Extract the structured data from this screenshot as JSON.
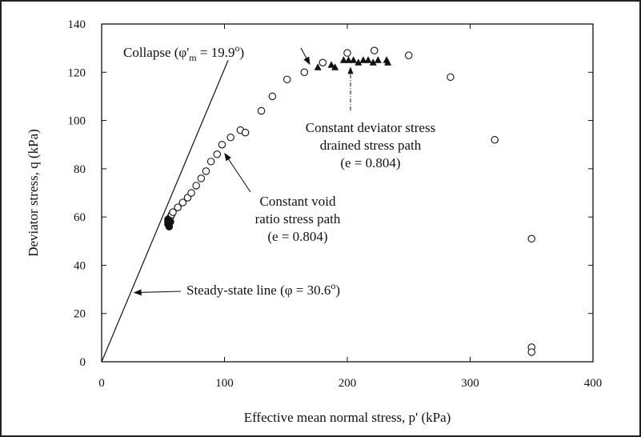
{
  "chart_data": {
    "type": "scatter",
    "title": "",
    "xlabel": "Effective mean normal stress, p' (kPa)",
    "ylabel": "Deviator stress, q (kPa)",
    "xlim": [
      0,
      400
    ],
    "ylim": [
      0,
      140
    ],
    "x_ticks": [
      0,
      100,
      200,
      300,
      400
    ],
    "y_ticks": [
      0,
      20,
      40,
      60,
      80,
      100,
      120,
      140
    ],
    "grid": false,
    "legend": "none",
    "series": [
      {
        "marker": "open-circle",
        "points": [
          [
            54,
            58
          ],
          [
            55,
            59
          ],
          [
            56,
            60
          ],
          [
            57,
            61
          ],
          [
            58,
            62
          ],
          [
            62,
            64
          ],
          [
            66,
            66
          ],
          [
            70,
            68
          ],
          [
            73,
            70
          ],
          [
            77,
            73
          ],
          [
            81,
            76
          ],
          [
            85,
            79
          ],
          [
            89,
            83
          ],
          [
            94,
            86
          ],
          [
            98,
            90
          ],
          [
            105,
            93
          ],
          [
            113,
            96
          ],
          [
            117,
            95
          ],
          [
            130,
            104
          ],
          [
            139,
            110
          ],
          [
            151,
            117
          ],
          [
            165,
            120
          ],
          [
            180,
            124
          ],
          [
            200,
            128
          ],
          [
            222,
            129
          ],
          [
            250,
            127
          ],
          [
            284,
            118
          ],
          [
            320,
            92
          ],
          [
            350,
            51
          ],
          [
            350,
            6
          ],
          [
            350,
            4
          ]
        ]
      },
      {
        "marker": "filled-triangle",
        "points": [
          [
            176,
            122
          ],
          [
            187,
            123
          ],
          [
            190,
            122
          ],
          [
            197,
            125
          ],
          [
            201,
            125
          ],
          [
            205,
            125
          ],
          [
            209,
            124
          ],
          [
            213,
            125
          ],
          [
            217,
            125
          ],
          [
            221,
            124
          ],
          [
            225,
            125
          ],
          [
            232,
            125
          ],
          [
            233,
            124
          ]
        ]
      },
      {
        "marker": "filled-circle",
        "points": [
          [
            54,
            57
          ],
          [
            55,
            56
          ],
          [
            56,
            58
          ],
          [
            54,
            59
          ]
        ]
      }
    ],
    "lines": [
      {
        "label": "Steady-state line",
        "from": [
          0,
          0
        ],
        "to": [
          103,
          125
        ]
      }
    ],
    "annotations": [
      {
        "text": "Collapse (φ'",
        "sub": "m",
        "text2": " = 19.9",
        "sup": "o",
        "text3": ")",
        "arrow_to": [
          172,
          122
        ]
      },
      {
        "text_lines": [
          "Constant deviator stress",
          "drained stress path",
          "(e = 0.804)"
        ],
        "arrow_to": [
          198,
          124
        ]
      },
      {
        "text_lines": [
          "Constant void",
          "ratio stress path",
          "(e = 0.804)"
        ],
        "arrow_to": [
          95,
          87
        ]
      },
      {
        "text": "Steady-state line (φ = 30.6",
        "sup": "o",
        "text3": ")",
        "arrow_to": [
          24,
          29
        ]
      }
    ]
  }
}
